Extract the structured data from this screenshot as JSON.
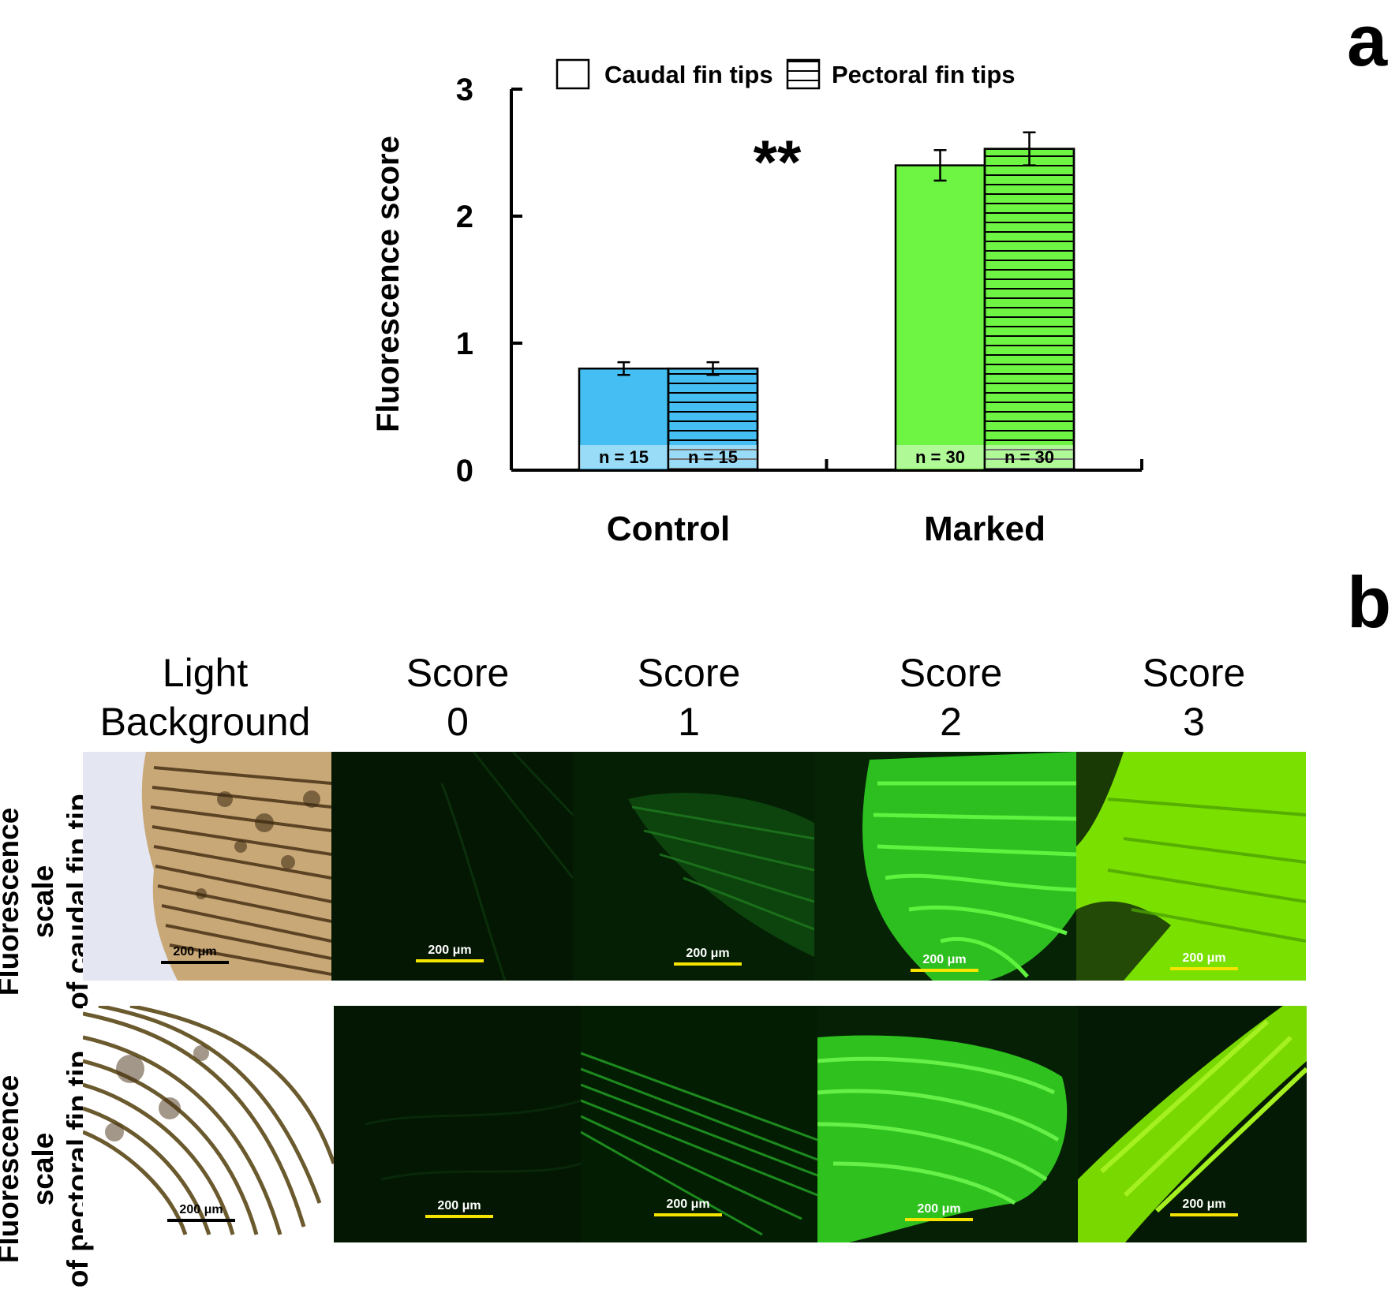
{
  "panel_a_letter": "a",
  "panel_b_letter": "b",
  "chart_data": {
    "type": "bar",
    "xlabel": "",
    "ylabel": "Fluorescence score",
    "ylim": [
      0,
      3
    ],
    "yticks": [
      "0",
      "1",
      "2",
      "3"
    ],
    "categories": [
      "Control",
      "Marked"
    ],
    "series": [
      {
        "name": "Caudal fin tips",
        "pattern": "solid",
        "values": [
          0.8,
          2.4
        ],
        "errors": [
          0.05,
          0.12
        ],
        "n_labels": [
          "n = 15",
          "n = 30"
        ]
      },
      {
        "name": "Pectoral fin tips",
        "pattern": "horizontal-stripes",
        "values": [
          0.8,
          2.53
        ],
        "errors": [
          0.05,
          0.13
        ],
        "n_labels": [
          "n = 15",
          "n = 30"
        ]
      }
    ],
    "category_colors": [
      "#45bff3",
      "#6ef543"
    ],
    "annotation": "**",
    "legend_position": "top"
  },
  "panel_b": {
    "column_headers": [
      {
        "line1": "Light",
        "line2": "Background"
      },
      {
        "line1": "Score",
        "line2": "0"
      },
      {
        "line1": "Score",
        "line2": "1"
      },
      {
        "line1": "Score",
        "line2": "2"
      },
      {
        "line1": "Score",
        "line2": "3"
      }
    ],
    "row_labels": [
      {
        "line1": "Fluorescence scale",
        "line2": "of caudal fin tip"
      },
      {
        "line1": "Fluorescence scale",
        "line2": "of pectoral fin tip"
      }
    ],
    "scale_bar_label": "200 μm",
    "colors": {
      "light_bg": "#e4e6f2",
      "fin_brown": "#5a4020",
      "fluor_dark": "#021a02",
      "fluor_green": "#39e51c",
      "fluor_bright": "#7fe600",
      "scale_yellow": "#f5e400",
      "scale_black": "#000000"
    }
  }
}
